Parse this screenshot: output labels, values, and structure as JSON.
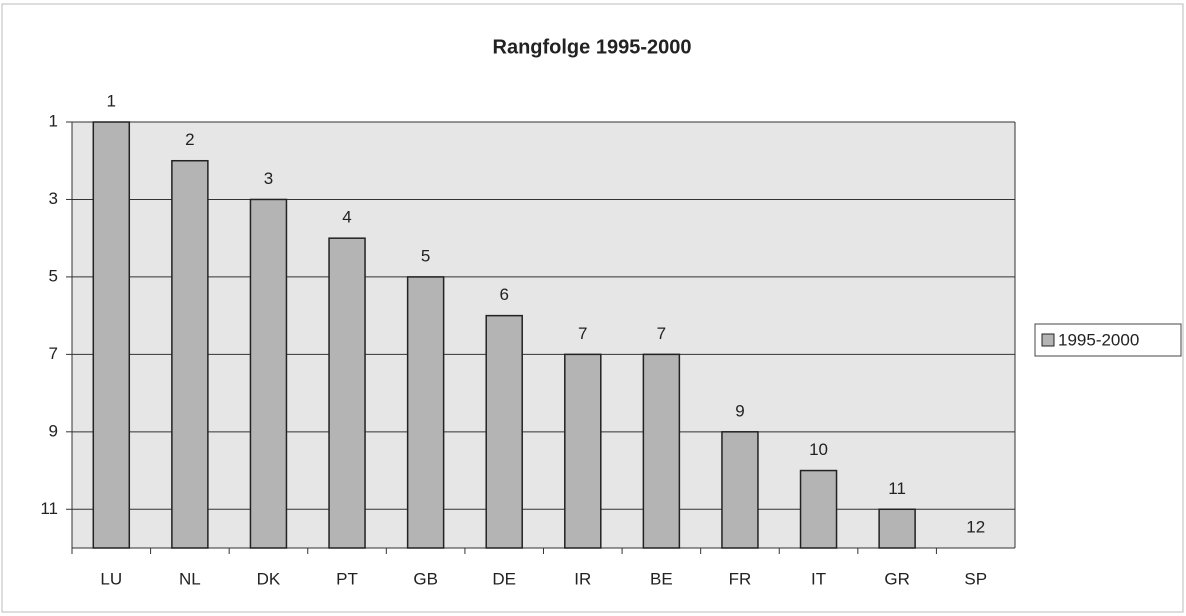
{
  "chart_data": {
    "type": "bar",
    "title": "Rangfolge 1995-2000",
    "categories": [
      "LU",
      "NL",
      "DK",
      "PT",
      "GB",
      "DE",
      "IR",
      "BE",
      "FR",
      "IT",
      "GR",
      "SP"
    ],
    "series": [
      {
        "name": "1995-2000",
        "color": "#b4b4b4",
        "values": [
          1,
          2,
          3,
          4,
          5,
          6,
          7,
          7,
          9,
          10,
          11,
          12
        ]
      }
    ],
    "ylim": [
      1,
      12
    ],
    "yticks": [
      1,
      3,
      5,
      7,
      9,
      11
    ],
    "y_inverted": true,
    "grid": true,
    "legend": "right"
  }
}
